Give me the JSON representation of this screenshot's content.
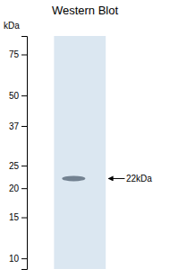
{
  "chart_data": {
    "type": "gel",
    "title": "Western Blot",
    "y_label": "kDa",
    "log": "y",
    "ylim": [
      9,
      90
    ],
    "yticks": [
      75,
      50,
      37,
      25,
      20,
      15,
      10
    ],
    "values": [
      22
    ],
    "value_labels": [
      "22kDa"
    ],
    "data_labels": true,
    "color": "#607080"
  }
}
